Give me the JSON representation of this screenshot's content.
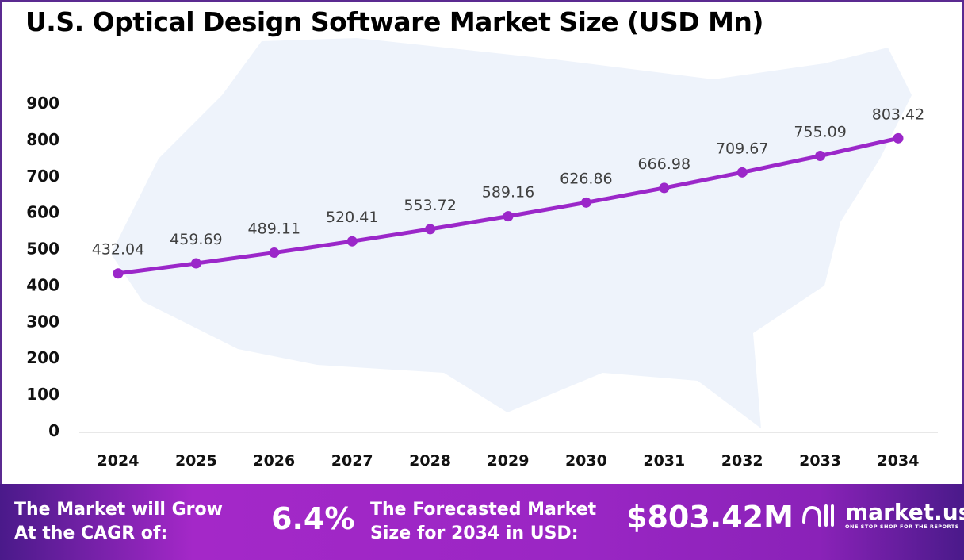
{
  "title": "U.S. Optical Design Software Market Size (USD Mn)",
  "colors": {
    "line": "#9b27c9",
    "border": "#5b2a91",
    "map": "#eef3fb"
  },
  "chart_data": {
    "type": "line",
    "title": "U.S. Optical Design Software Market Size (USD Mn)",
    "categories": [
      "2024",
      "2025",
      "2026",
      "2027",
      "2028",
      "2029",
      "2030",
      "2031",
      "2032",
      "2033",
      "2034"
    ],
    "values": [
      432.04,
      459.69,
      489.11,
      520.41,
      553.72,
      589.16,
      626.86,
      666.98,
      709.67,
      755.09,
      803.42
    ],
    "labels": [
      "432.04",
      "459.69",
      "489.11",
      "520.41",
      "553.72",
      "589.16",
      "626.86",
      "666.98",
      "709.67",
      "755.09",
      "803.42"
    ],
    "yticks": [
      "0",
      "100",
      "200",
      "300",
      "400",
      "500",
      "600",
      "700",
      "800",
      "900"
    ],
    "ylim": [
      0,
      900
    ],
    "grid": false,
    "legend": "none"
  },
  "footer": {
    "cagr_text_1": "The Market will Grow",
    "cagr_text_2": "At the CAGR of:",
    "cagr_value": "6.4%",
    "forecast_text_1": "The Forecasted Market",
    "forecast_text_2": "Size for 2034 in USD:",
    "forecast_value": "$803.42M",
    "logo_name": "market.us",
    "logo_tagline": "ONE STOP SHOP FOR THE REPORTS"
  }
}
